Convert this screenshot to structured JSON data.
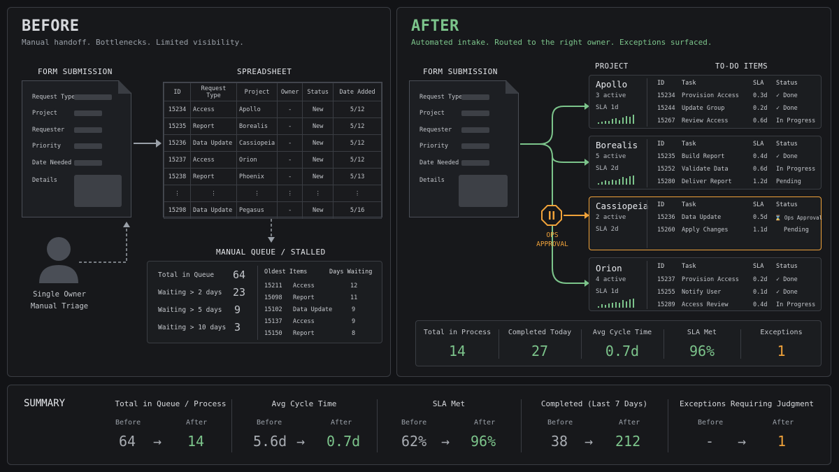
{
  "before": {
    "title": "BEFORE",
    "subtitle": "Manual handoff. Bottlenecks. Limited visibility.",
    "form_caption": "FORM SUBMISSION",
    "form_fields": [
      "Request Type",
      "Project",
      "Requester",
      "Priority",
      "Date Needed",
      "Details"
    ],
    "spreadsheet_caption": "SPREADSHEET",
    "spreadsheet": {
      "headers": [
        "ID",
        "Request Type",
        "Project",
        "Owner",
        "Status",
        "Date Added"
      ],
      "rows": [
        [
          "15234",
          "Access",
          "Apollo",
          "-",
          "New",
          "5/12"
        ],
        [
          "15235",
          "Report",
          "Borealis",
          "-",
          "New",
          "5/12"
        ],
        [
          "15236",
          "Data Update",
          "Cassiopeia",
          "-",
          "New",
          "5/12"
        ],
        [
          "15237",
          "Access",
          "Orion",
          "-",
          "New",
          "5/12"
        ],
        [
          "15238",
          "Report",
          "Phoenix",
          "-",
          "New",
          "5/13"
        ],
        [
          "⋮",
          "⋮",
          "⋮",
          "⋮",
          "⋮",
          "⋮"
        ],
        [
          "15298",
          "Data Update",
          "Pegasus",
          "-",
          "New",
          "5/16"
        ]
      ]
    },
    "owner_label": [
      "Single Owner",
      "Manual Triage"
    ],
    "queue_caption": "MANUAL QUEUE / STALLED",
    "queue_stats": [
      {
        "label": "Total in Queue",
        "value": "64"
      },
      {
        "label": "Waiting > 2 days",
        "value": "23"
      },
      {
        "label": "Waiting > 5 days",
        "value": "9"
      },
      {
        "label": "Waiting > 10 days",
        "value": "3"
      }
    ],
    "oldest_header": "Oldest Items",
    "days_header": "Days Waiting",
    "oldest_items": [
      {
        "id": "15211",
        "type": "Access",
        "days": "12"
      },
      {
        "id": "15098",
        "type": "Report",
        "days": "11"
      },
      {
        "id": "15102",
        "type": "Data Update",
        "days": "9"
      },
      {
        "id": "15137",
        "type": "Access",
        "days": "9"
      },
      {
        "id": "15150",
        "type": "Report",
        "days": "8"
      }
    ]
  },
  "after": {
    "title": "AFTER",
    "subtitle": "Automated intake. Routed to the right owner. Exceptions surfaced.",
    "form_caption": "FORM SUBMISSION",
    "form_fields": [
      "Request Type",
      "Project",
      "Requester",
      "Priority",
      "Date Needed",
      "Details"
    ],
    "project_header": "PROJECT",
    "todo_header": "TO-DO ITEMS",
    "col_headers": [
      "ID",
      "Task",
      "SLA",
      "Status"
    ],
    "ops_label": [
      "OPS",
      "APPROVAL"
    ],
    "projects": [
      {
        "name": "Apollo",
        "active": "3 active",
        "sla": "SLA 1d",
        "spark": [
          2,
          3,
          4,
          4,
          6,
          7,
          5,
          8,
          10,
          9,
          12
        ],
        "items": [
          [
            "15234",
            "Provision Access",
            "0.3d",
            "✓ Done"
          ],
          [
            "15244",
            "Update Group",
            "0.2d",
            "✓ Done"
          ],
          [
            "15267",
            "Review Access",
            "0.6d",
            "In Progress"
          ]
        ]
      },
      {
        "name": "Borealis",
        "active": "5 active",
        "sla": "SLA 2d",
        "spark": [
          2,
          3,
          5,
          4,
          6,
          5,
          7,
          9,
          8,
          10,
          11
        ],
        "items": [
          [
            "15235",
            "Build Report",
            "0.4d",
            "✓ Done"
          ],
          [
            "15252",
            "Validate Data",
            "0.6d",
            "In Progress"
          ],
          [
            "15280",
            "Deliver Report",
            "1.2d",
            "Pending"
          ]
        ]
      },
      {
        "name": "Cassiopeia",
        "active": "2 active",
        "sla": "SLA 2d",
        "spark": [],
        "items": [
          [
            "15236",
            "Data Update",
            "0.5d",
            "⌛ Ops Approval"
          ],
          [
            "15260",
            "Apply Changes",
            "1.1d",
            "Pending"
          ]
        ]
      },
      {
        "name": "Orion",
        "active": "4 active",
        "sla": "SLA 1d",
        "spark": [
          2,
          4,
          3,
          5,
          6,
          7,
          6,
          9,
          8,
          10,
          11
        ],
        "items": [
          [
            "15237",
            "Provision Access",
            "0.2d",
            "✓ Done"
          ],
          [
            "15255",
            "Notify User",
            "0.1d",
            "✓ Done"
          ],
          [
            "15289",
            "Access Review",
            "0.4d",
            "In Progress"
          ]
        ]
      }
    ],
    "kpis": [
      {
        "label": "Total in Process",
        "value": "14"
      },
      {
        "label": "Completed Today",
        "value": "27"
      },
      {
        "label": "Avg Cycle Time",
        "value": "0.7d"
      },
      {
        "label": "SLA Met",
        "value": "96%"
      },
      {
        "label": "Exceptions",
        "value": "1"
      }
    ]
  },
  "summary": {
    "title": "SUMMARY",
    "before_label": "Before",
    "after_label": "After",
    "arrow": "→",
    "metrics": [
      {
        "title": "Total in Queue / Process",
        "before": "64",
        "after": "14"
      },
      {
        "title": "Avg Cycle Time",
        "before": "5.6d",
        "after": "0.7d"
      },
      {
        "title": "SLA Met",
        "before": "62%",
        "after": "96%"
      },
      {
        "title": "Completed (Last 7 Days)",
        "before": "38",
        "after": "212"
      },
      {
        "title": "Exceptions Requiring Judgment",
        "before": "-",
        "after": "1"
      }
    ]
  },
  "colors": {
    "green": "#7cc48b",
    "orange": "#f0a23a",
    "border": "#3a3d43"
  }
}
